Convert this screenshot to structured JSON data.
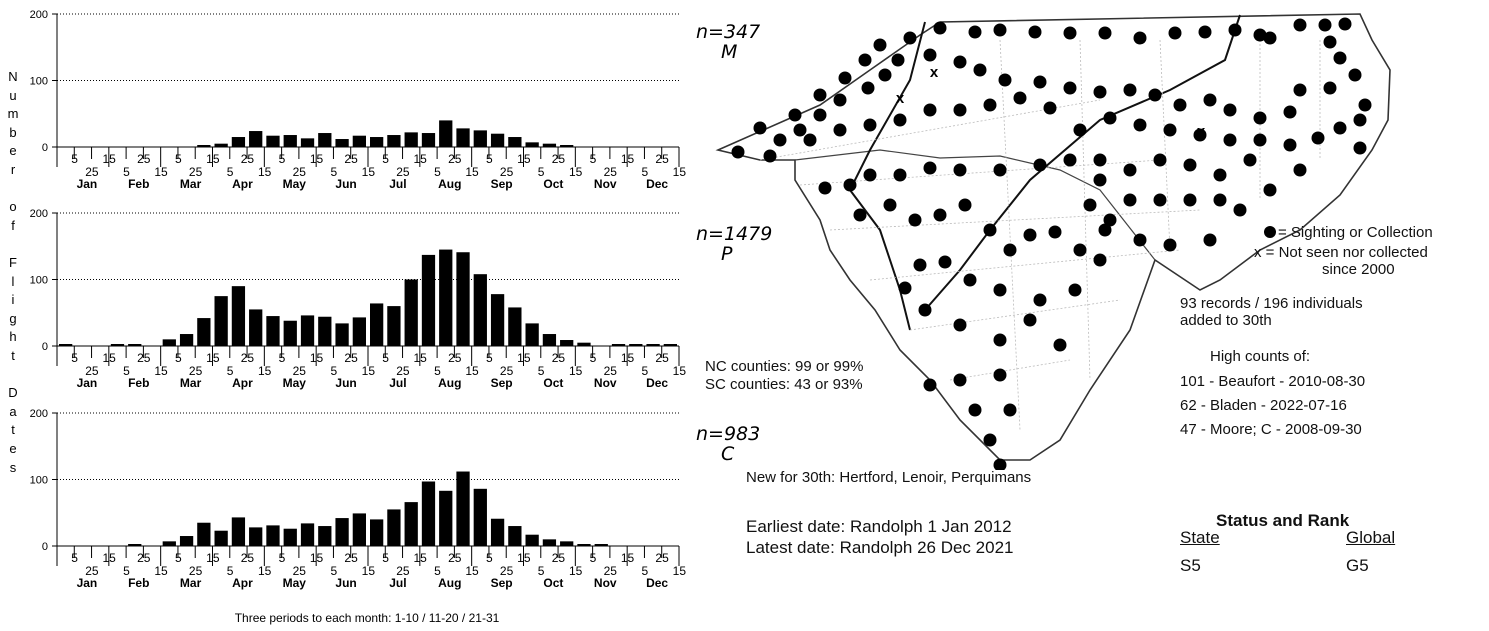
{
  "axis_title": "Number of Flight Dates",
  "axis_title_letters": [
    "N",
    "u",
    "m",
    "b",
    "e",
    "r",
    "",
    "o",
    "f",
    "",
    "F",
    "l",
    "i",
    "g",
    "h",
    "t",
    "",
    "D",
    "a",
    "t",
    "e",
    "s"
  ],
  "x_footnote": "Three periods to each month: 1-10 / 11-20 / 21-31",
  "period_labels_top": [
    "5",
    "25",
    "15",
    "5",
    "25",
    "15",
    "5",
    "25",
    "15",
    "5",
    "25",
    "15"
  ],
  "period_labels_bottom": [
    "15",
    "5",
    "25",
    "15",
    "5",
    "25",
    "15",
    "5",
    "25",
    "15",
    "5",
    "25"
  ],
  "months": [
    "Jan",
    "Feb",
    "Mar",
    "Apr",
    "May",
    "Jun",
    "Jul",
    "Aug",
    "Sep",
    "Oct",
    "Nov",
    "Dec"
  ],
  "chart_data": [
    {
      "type": "bar",
      "series": [
        {
          "name": "n=347 M",
          "values": [
            0,
            0,
            0,
            0,
            0,
            0,
            0,
            0,
            3,
            5,
            15,
            24,
            17,
            18,
            13,
            21,
            12,
            17,
            15,
            18,
            22,
            21,
            40,
            28,
            25,
            20,
            15,
            7,
            5,
            3,
            0,
            0,
            0,
            0,
            0,
            0
          ]
        }
      ],
      "ylim": [
        0,
        200
      ],
      "yticks": [
        "0",
        "100",
        "200"
      ]
    },
    {
      "type": "bar",
      "series": [
        {
          "name": "n=1479 P",
          "values": [
            3,
            0,
            0,
            3,
            3,
            0,
            10,
            18,
            42,
            75,
            90,
            55,
            45,
            38,
            46,
            44,
            34,
            43,
            64,
            60,
            100,
            137,
            145,
            141,
            108,
            78,
            58,
            34,
            18,
            9,
            5,
            0,
            3,
            3,
            3,
            3
          ]
        }
      ],
      "ylim": [
        0,
        200
      ],
      "yticks": [
        "0",
        "100",
        "200"
      ]
    },
    {
      "type": "bar",
      "series": [
        {
          "name": "n=983 C",
          "values": [
            0,
            0,
            0,
            0,
            3,
            0,
            7,
            15,
            35,
            23,
            43,
            28,
            31,
            26,
            34,
            30,
            42,
            49,
            40,
            55,
            66,
            97,
            83,
            112,
            86,
            41,
            30,
            17,
            10,
            7,
            3,
            3,
            0,
            0,
            0,
            0
          ]
        }
      ],
      "ylim": [
        0,
        200
      ],
      "yticks": [
        "0",
        "100",
        "200"
      ]
    }
  ],
  "labels": {
    "n_m": "n=347",
    "m": "M",
    "n_p": "n=1479",
    "p": "P",
    "n_c": "n=983",
    "c": "C"
  },
  "legend": {
    "sighting": "= Sighting or Collection",
    "not_seen_1": "x = Not seen nor collected",
    "not_seen_2": "since 2000"
  },
  "records": {
    "line1": "93 records / 196 individuals",
    "line2": "added to 30th"
  },
  "high_counts": {
    "title": "High counts of:",
    "items": [
      "101 - Beaufort - 2010-08-30",
      "62 - Bladen - 2022-07-16",
      "47 - Moore; C - 2008-09-30"
    ]
  },
  "counties": {
    "nc": "NC counties: 99 or 99%",
    "sc": "SC counties: 43 or 93%"
  },
  "new_for": "New for 30th: Hertford, Lenoir, Perquimans",
  "dates": {
    "earliest": "Earliest date: Randolph  1 Jan 2012",
    "latest": "Latest date: Randolph  26 Dec 2021"
  },
  "status": {
    "title": "Status and Rank",
    "state_header": "State",
    "global_header": "Global",
    "state_value": "S5",
    "global_value": "G5"
  }
}
